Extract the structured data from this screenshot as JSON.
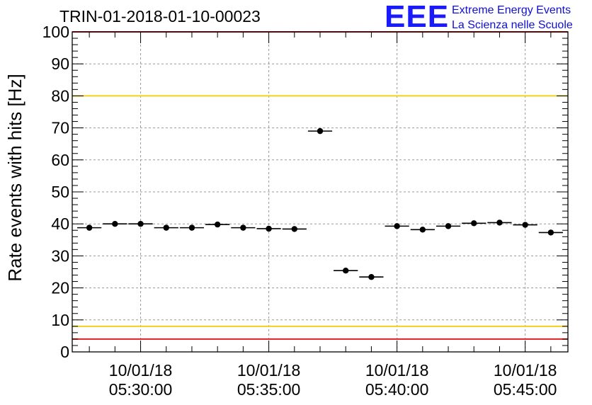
{
  "chart_data": {
    "type": "scatter",
    "title": "TRIN-01-2018-01-10-00023",
    "ylabel": "Rate events with hits [Hz]",
    "xlabel": "",
    "ylim": [
      0,
      100
    ],
    "yticks": [
      0,
      10,
      20,
      30,
      40,
      50,
      60,
      70,
      80,
      90,
      100
    ],
    "xlim": [
      "05:27:20",
      "05:46:40"
    ],
    "xticks": [
      {
        "date": "10/01/18",
        "time": "05:30:00"
      },
      {
        "date": "10/01/18",
        "time": "05:35:00"
      },
      {
        "date": "10/01/18",
        "time": "05:40:00"
      },
      {
        "date": "10/01/18",
        "time": "05:45:00"
      }
    ],
    "grid": true,
    "bin_width_seconds": 60,
    "points": [
      {
        "x": "05:28:00",
        "y": 38.8
      },
      {
        "x": "05:29:00",
        "y": 40.0
      },
      {
        "x": "05:30:00",
        "y": 40.0
      },
      {
        "x": "05:31:00",
        "y": 38.8
      },
      {
        "x": "05:32:00",
        "y": 38.8
      },
      {
        "x": "05:33:00",
        "y": 39.8
      },
      {
        "x": "05:34:00",
        "y": 38.8
      },
      {
        "x": "05:35:00",
        "y": 38.5
      },
      {
        "x": "05:36:00",
        "y": 38.4
      },
      {
        "x": "05:37:00",
        "y": 69.0
      },
      {
        "x": "05:38:00",
        "y": 25.4
      },
      {
        "x": "05:39:00",
        "y": 23.4
      },
      {
        "x": "05:40:00",
        "y": 39.3
      },
      {
        "x": "05:41:00",
        "y": 38.2
      },
      {
        "x": "05:42:00",
        "y": 39.3
      },
      {
        "x": "05:43:00",
        "y": 40.2
      },
      {
        "x": "05:44:00",
        "y": 40.4
      },
      {
        "x": "05:45:00",
        "y": 39.7
      },
      {
        "x": "05:46:00",
        "y": 37.3
      }
    ],
    "threshold_lines": [
      {
        "y": 80,
        "color": "#f0d020"
      },
      {
        "y": 8,
        "color": "#f0d020"
      },
      {
        "y": 100,
        "color": "#e02020"
      },
      {
        "y": 4,
        "color": "#e02020"
      }
    ]
  },
  "logo": {
    "mark": "EEE",
    "line1": "Extreme Energy Events",
    "line2": "La Scienza nelle Scuole",
    "color": "#1010d0"
  }
}
